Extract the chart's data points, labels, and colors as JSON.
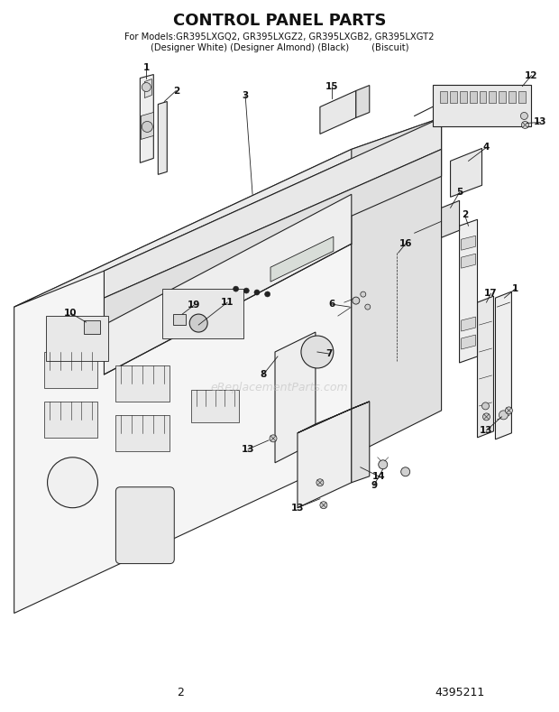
{
  "title": "CONTROL PANEL PARTS",
  "subtitle_line1": "For Models:GR395LXGQ2, GR395LXGZ2, GR395LXGB2, GR395LXGT2",
  "subtitle_line2": "(Designer White) (Designer Almond) (Black)        (Biscuit)",
  "page_number": "2",
  "part_number": "4395211",
  "watermark": "eReplacementParts.com",
  "bg": "#ffffff",
  "lc": "#222222",
  "fig_w": 6.2,
  "fig_h": 7.89,
  "dpi": 100
}
